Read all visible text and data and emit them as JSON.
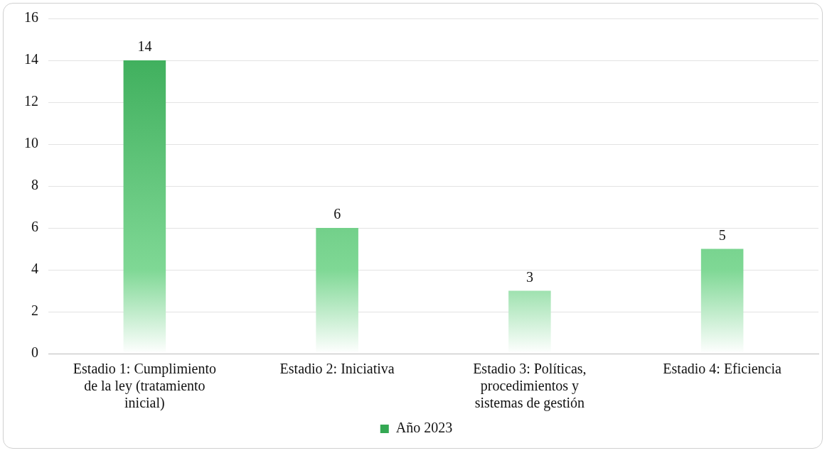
{
  "chart_data": {
    "type": "bar",
    "categories": [
      "Estadio 1: Cumplimiento de la ley (tratamiento inicial)",
      "Estadio 2: Iniciativa",
      "Estadio 3: Políticas, procedimientos y sistemas de gestión",
      "Estadio 4: Eficiencia"
    ],
    "series": [
      {
        "name": "Año 2023",
        "color": "#34a853",
        "values": [
          14,
          6,
          3,
          5
        ]
      }
    ],
    "ylim": [
      0,
      16
    ],
    "yticks": [
      0,
      2,
      4,
      6,
      8,
      10,
      12,
      14,
      16
    ],
    "grid": "y",
    "legend": "bottom",
    "data_labels": true
  }
}
